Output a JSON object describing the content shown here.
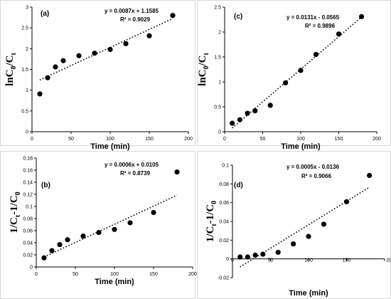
{
  "chart_data": [
    {
      "id": "a",
      "type": "scatter",
      "panel_label": "(a)",
      "equation": "y = 0.0087x + 1.1585",
      "r2": "R² = 0.9029",
      "xlabel": "Time (min)",
      "ylabel_base": "lnC",
      "ylabel_sub1": "0",
      "ylabel_mid": "/C",
      "ylabel_sub2": "t",
      "xlim": [
        0,
        200
      ],
      "ylim": [
        0,
        3
      ],
      "xticks": [
        "0",
        "50",
        "100",
        "150",
        "200"
      ],
      "yticks": [
        "0",
        "0.5",
        "1",
        "1.5",
        "2",
        "2.5",
        "3"
      ],
      "x": [
        10,
        20,
        30,
        40,
        60,
        80,
        100,
        120,
        150,
        180
      ],
      "y": [
        0.91,
        1.3,
        1.56,
        1.71,
        1.83,
        1.89,
        1.98,
        2.12,
        2.31,
        2.8
      ],
      "trend": {
        "slope": 0.0087,
        "intercept": 1.1585
      }
    },
    {
      "id": "c",
      "type": "scatter",
      "panel_label": "(c)",
      "equation": "y = 0.0131x - 0.0565",
      "r2": "R² = 0.9896",
      "xlabel": "Time (min)",
      "ylabel_base": "lnC",
      "ylabel_sub1": "0",
      "ylabel_mid": "/C",
      "ylabel_sub2": "t",
      "xlim": [
        0,
        200
      ],
      "ylim": [
        0,
        2.5
      ],
      "xticks": [
        "0",
        "50",
        "100",
        "150",
        "200"
      ],
      "yticks": [
        "0",
        "0.5",
        "1",
        "1.5",
        "2",
        "2.5"
      ],
      "x": [
        10,
        20,
        30,
        40,
        60,
        80,
        100,
        120,
        150,
        180
      ],
      "y": [
        0.17,
        0.24,
        0.37,
        0.42,
        0.53,
        0.98,
        1.23,
        1.55,
        1.96,
        2.31
      ],
      "trend": {
        "slope": 0.0131,
        "intercept": -0.0565
      }
    },
    {
      "id": "b",
      "type": "scatter",
      "panel_label": "(b)",
      "equation": "y = 0.0006x + 0.0105",
      "r2": "R² = 0.8739",
      "xlabel": "Time (min)",
      "ylabel_base": "1/C",
      "ylabel_sub1": "t",
      "ylabel_mid": "-1/C",
      "ylabel_sub2": "0",
      "xlim": [
        0,
        200
      ],
      "ylim": [
        0,
        0.18
      ],
      "xticks": [
        "0",
        "50",
        "100",
        "150",
        "200"
      ],
      "yticks": [
        "0",
        "0.02",
        "0.04",
        "0.06",
        "0.08",
        "0.1",
        "0.12",
        "0.14",
        "0.16",
        "0.18"
      ],
      "x": [
        10,
        20,
        30,
        40,
        60,
        80,
        100,
        120,
        150,
        180
      ],
      "y": [
        0.015,
        0.027,
        0.037,
        0.045,
        0.051,
        0.057,
        0.062,
        0.073,
        0.09,
        0.157
      ],
      "trend": {
        "slope": 0.0006,
        "intercept": 0.0105
      }
    },
    {
      "id": "d",
      "type": "scatter",
      "panel_label": "(d)",
      "equation": "y = 0.0005x - 0.0136",
      "r2": "R² = 0.9066",
      "xlabel": "Time (min)",
      "ylabel_base": "1/C",
      "ylabel_sub1": "t",
      "ylabel_mid": "-1/C",
      "ylabel_sub2": "0",
      "xlim": [
        0,
        200
      ],
      "ylim": [
        -0.02,
        0.1
      ],
      "xticks": [
        "0",
        "50",
        "100",
        "150",
        "200"
      ],
      "yticks": [
        "-0.02",
        "0",
        "0.02",
        "0.04",
        "0.06",
        "0.08",
        "0.1"
      ],
      "x": [
        10,
        20,
        30,
        40,
        60,
        80,
        100,
        120,
        150,
        180
      ],
      "y": [
        0.002,
        0.002,
        0.004,
        0.005,
        0.007,
        0.016,
        0.024,
        0.037,
        0.061,
        0.089
      ],
      "trend": {
        "slope": 0.0005,
        "intercept": -0.0136
      }
    }
  ]
}
